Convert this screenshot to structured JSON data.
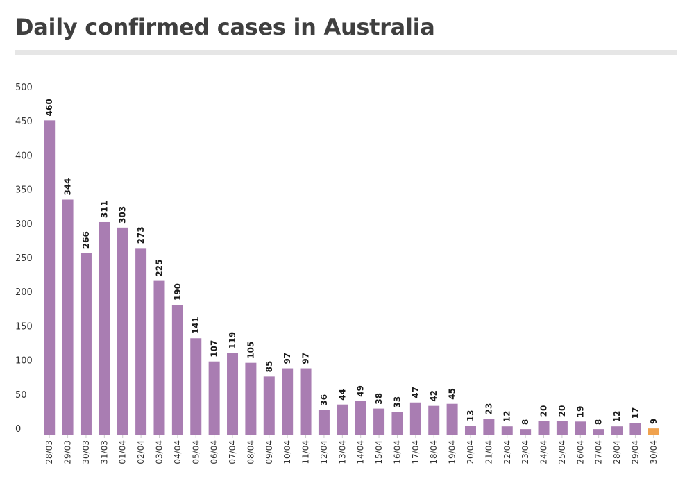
{
  "title": "Daily confirmed cases in Australia",
  "chart_data": {
    "type": "bar",
    "title": "Daily confirmed cases in Australia",
    "xlabel": "",
    "ylabel": "",
    "ylim": [
      0,
      500
    ],
    "yticks": [
      0,
      50,
      100,
      150,
      200,
      250,
      300,
      350,
      400,
      450,
      500
    ],
    "grid": false,
    "legend": "none",
    "categories": [
      "28/03",
      "29/03",
      "30/03",
      "31/03",
      "01/04",
      "02/04",
      "03/04",
      "04/04",
      "05/04",
      "06/04",
      "07/04",
      "08/04",
      "09/04",
      "10/04",
      "11/04",
      "12/04",
      "13/04",
      "14/04",
      "15/04",
      "16/04",
      "17/04",
      "18/04",
      "19/04",
      "20/04",
      "21/04",
      "22/04",
      "23/04",
      "24/04",
      "25/04",
      "26/04",
      "27/04",
      "28/04",
      "29/04",
      "30/04"
    ],
    "series": [
      {
        "values": [
          460,
          344,
          266,
          311,
          303,
          273,
          225,
          190,
          141,
          107,
          119,
          105,
          85,
          97,
          97,
          36,
          44,
          49,
          38,
          33,
          47,
          42,
          45,
          13,
          23,
          12,
          8,
          20,
          20,
          19,
          8,
          12,
          17,
          9
        ]
      }
    ],
    "colors": {
      "bar": "#a97db2",
      "highlight": "#f0a24e",
      "axis": "#cccccc"
    },
    "highlight_category": "30/04"
  }
}
